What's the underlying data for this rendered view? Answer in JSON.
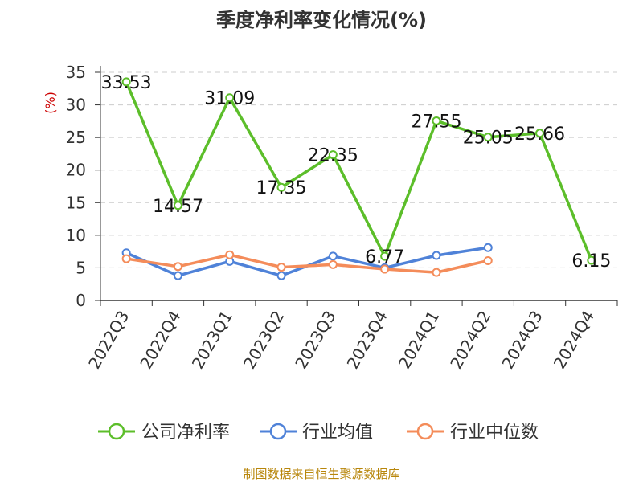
{
  "chart_data": {
    "type": "line",
    "title": "季度净利率变化情况(%)",
    "ylabel": "(%)",
    "ylim": [
      0,
      35
    ],
    "yticks": [
      0,
      5,
      10,
      15,
      20,
      25,
      30,
      35
    ],
    "grid": true,
    "legend_position": "bottom",
    "categories": [
      "2022Q3",
      "2022Q4",
      "2023Q1",
      "2023Q2",
      "2023Q3",
      "2023Q4",
      "2024Q1",
      "2024Q2",
      "2024Q3",
      "2024Q4"
    ],
    "series": [
      {
        "name": "公司净利率",
        "color": "#5cbe2a",
        "values": [
          33.53,
          14.57,
          31.09,
          17.35,
          22.35,
          6.77,
          27.55,
          25.05,
          25.66,
          6.15
        ],
        "labels": [
          "33.53",
          "14.57",
          "31.09",
          "17.35",
          "22.35",
          "6.77",
          "27.55",
          "25.05",
          "25.66",
          "6.15"
        ]
      },
      {
        "name": "行业均值",
        "color": "#4f82d8",
        "values": [
          7.3,
          3.8,
          6.0,
          3.8,
          6.8,
          5.0,
          6.9,
          8.1,
          null,
          null
        ]
      },
      {
        "name": "行业中位数",
        "color": "#f48c5a",
        "values": [
          6.4,
          5.2,
          7.0,
          5.1,
          5.5,
          4.8,
          4.3,
          6.1,
          null,
          null
        ]
      }
    ],
    "source": "制图数据来自恒生聚源数据库"
  }
}
